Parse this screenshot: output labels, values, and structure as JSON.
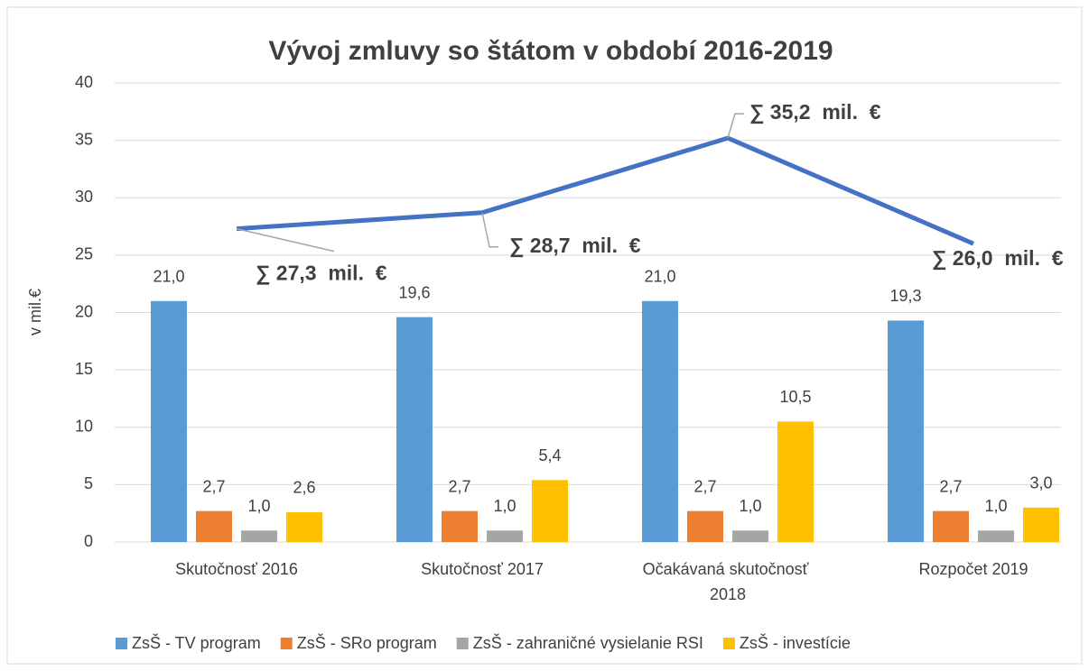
{
  "chart_data": {
    "type": "bar",
    "title": "Vývoj zmluvy so štátom v období 2016-2019",
    "y_label": "v mil.€",
    "categories": [
      "Skutočnosť 2016",
      "Skutočnosť 2017",
      "Očakávaná skutočnosť 2018",
      "Rozpočet 2019"
    ],
    "series": [
      {
        "name": "ZsŠ - TV program",
        "color": "#5b9bd5",
        "values": [
          21.0,
          19.6,
          21.0,
          19.3
        ],
        "value_labels": [
          "21,0",
          "19,6",
          "21,0",
          "19,3"
        ]
      },
      {
        "name": "ZsŠ - SRo program",
        "color": "#ed7d31",
        "values": [
          2.7,
          2.7,
          2.7,
          2.7
        ],
        "value_labels": [
          "2,7",
          "2,7",
          "2,7",
          "2,7"
        ]
      },
      {
        "name": "ZsŠ - zahraničné vysielanie RSI",
        "color": "#a5a5a5",
        "values": [
          1.0,
          1.0,
          1.0,
          1.0
        ],
        "value_labels": [
          "1,0",
          "1,0",
          "1,0",
          "1,0"
        ]
      },
      {
        "name": "ZsŠ - investície",
        "color": "#ffc000",
        "values": [
          2.6,
          5.4,
          10.5,
          3.0
        ],
        "value_labels": [
          "2,6",
          "5,4",
          "10,5",
          "3,0"
        ]
      }
    ],
    "line": {
      "type": "line",
      "color": "#4472c4",
      "values": [
        27.3,
        28.7,
        35.2,
        26.0
      ],
      "value_labels": [
        "∑ 27,3  mil.  €",
        "∑ 28,7  mil.  €",
        "∑ 35,2  mil.  €",
        "∑ 26,0  mil.  €"
      ]
    },
    "ylim": [
      0,
      40
    ],
    "yticks": [
      0,
      5,
      10,
      15,
      20,
      25,
      30,
      35,
      40
    ],
    "grid": true,
    "legend": "bottom"
  }
}
